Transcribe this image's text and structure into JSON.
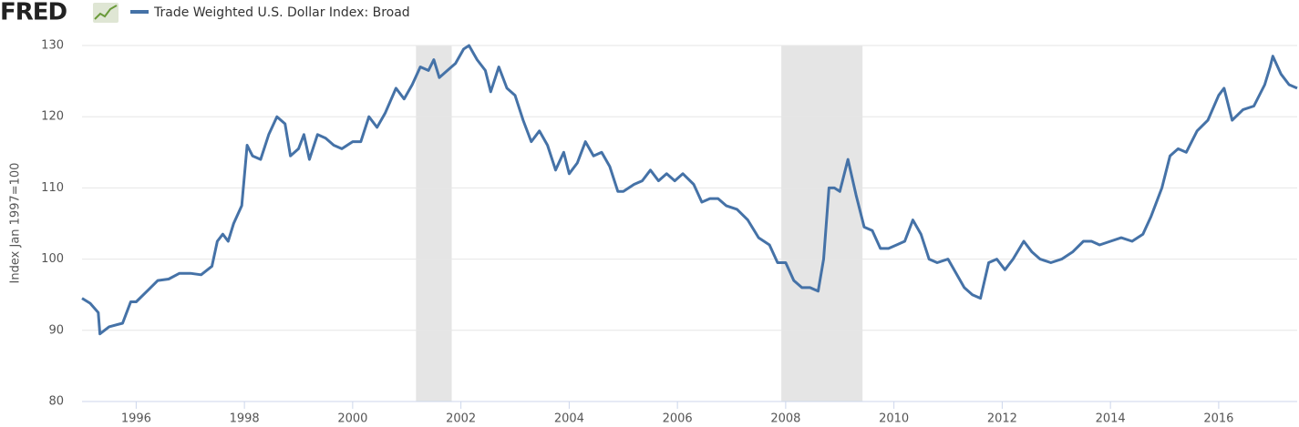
{
  "chart_data": {
    "type": "line",
    "logo": "FRED",
    "y_label": "Index Jan 1997=100",
    "xlim": [
      1995,
      2017.45
    ],
    "xticks": [
      1996,
      1998,
      2000,
      2002,
      2004,
      2006,
      2008,
      2010,
      2012,
      2014,
      2016
    ],
    "ylim": [
      80,
      130
    ],
    "yticks": [
      80,
      90,
      100,
      110,
      120,
      130
    ],
    "grid": true,
    "recessions": [
      [
        2001.17,
        2001.83
      ],
      [
        2007.92,
        2009.42
      ]
    ],
    "recession_color": "#e5e5e5",
    "x": [
      1995.0,
      1995.15,
      1995.3,
      1995.33,
      1995.5,
      1995.75,
      1995.9,
      1996.0,
      1996.2,
      1996.4,
      1996.6,
      1996.8,
      1997.0,
      1997.2,
      1997.4,
      1997.5,
      1997.6,
      1997.7,
      1997.8,
      1997.95,
      1998.05,
      1998.15,
      1998.3,
      1998.45,
      1998.6,
      1998.75,
      1998.85,
      1999.0,
      1999.1,
      1999.2,
      1999.35,
      1999.5,
      1999.65,
      1999.8,
      2000.0,
      2000.15,
      2000.3,
      2000.45,
      2000.6,
      2000.8,
      2000.95,
      2001.1,
      2001.25,
      2001.4,
      2001.5,
      2001.6,
      2001.75,
      2001.9,
      2002.05,
      2002.15,
      2002.3,
      2002.45,
      2002.55,
      2002.7,
      2002.85,
      2003.0,
      2003.15,
      2003.3,
      2003.45,
      2003.6,
      2003.75,
      2003.9,
      2004.0,
      2004.15,
      2004.3,
      2004.45,
      2004.6,
      2004.75,
      2004.9,
      2005.0,
      2005.2,
      2005.35,
      2005.5,
      2005.65,
      2005.8,
      2005.95,
      2006.1,
      2006.3,
      2006.45,
      2006.6,
      2006.75,
      2006.9,
      2007.1,
      2007.3,
      2007.5,
      2007.7,
      2007.85,
      2008.0,
      2008.15,
      2008.3,
      2008.45,
      2008.6,
      2008.7,
      2008.8,
      2008.9,
      2009.0,
      2009.15,
      2009.3,
      2009.45,
      2009.6,
      2009.75,
      2009.9,
      2010.05,
      2010.2,
      2010.35,
      2010.5,
      2010.65,
      2010.8,
      2011.0,
      2011.15,
      2011.3,
      2011.45,
      2011.6,
      2011.75,
      2011.9,
      2012.05,
      2012.2,
      2012.4,
      2012.55,
      2012.7,
      2012.9,
      2013.1,
      2013.3,
      2013.5,
      2013.65,
      2013.8,
      2014.0,
      2014.2,
      2014.4,
      2014.6,
      2014.75,
      2014.95,
      2015.1,
      2015.25,
      2015.4,
      2015.6,
      2015.8,
      2016.0,
      2016.1,
      2016.25,
      2016.45,
      2016.65,
      2016.85,
      2016.95,
      2017.0,
      2017.15,
      2017.3,
      2017.45
    ],
    "series": [
      {
        "name": "Trade Weighted U.S. Dollar Index: Broad",
        "color": "#4572a7",
        "values": [
          94.5,
          93.8,
          92.5,
          89.5,
          90.5,
          91,
          94,
          94,
          95.5,
          97,
          97.2,
          98,
          98,
          97.8,
          99,
          102.5,
          103.5,
          102.5,
          105,
          107.5,
          116,
          114.5,
          114,
          117.5,
          120,
          119,
          114.5,
          115.5,
          117.5,
          114,
          117.5,
          117,
          116,
          115.5,
          116.5,
          116.5,
          120,
          118.5,
          120.5,
          124,
          122.5,
          124.5,
          127,
          126.5,
          128,
          125.5,
          126.5,
          127.5,
          129.5,
          130,
          128,
          126.5,
          123.5,
          127,
          124,
          123,
          119.5,
          116.5,
          118,
          116,
          112.5,
          115,
          112,
          113.5,
          116.5,
          114.5,
          115,
          113,
          109.5,
          109.5,
          110.5,
          111,
          112.5,
          111,
          112,
          111,
          112,
          110.5,
          108,
          108.5,
          108.5,
          107.5,
          107,
          105.5,
          103,
          102,
          99.5,
          99.5,
          97,
          96,
          96,
          95.5,
          100,
          110,
          110,
          109.5,
          114,
          109,
          104.5,
          104,
          101.5,
          101.5,
          102,
          102.5,
          105.5,
          103.5,
          100,
          99.5,
          100,
          98,
          96,
          95,
          94.5,
          99.5,
          100,
          98.5,
          100,
          102.5,
          101,
          100,
          99.5,
          100,
          101,
          102.5,
          102.5,
          102,
          102.5,
          103,
          102.5,
          103.5,
          106,
          110,
          114.5,
          115.5,
          115,
          118,
          119.5,
          123,
          124,
          119.5,
          121,
          121.5,
          124.5,
          127,
          128.5,
          126,
          124.5,
          124
        ]
      }
    ]
  }
}
